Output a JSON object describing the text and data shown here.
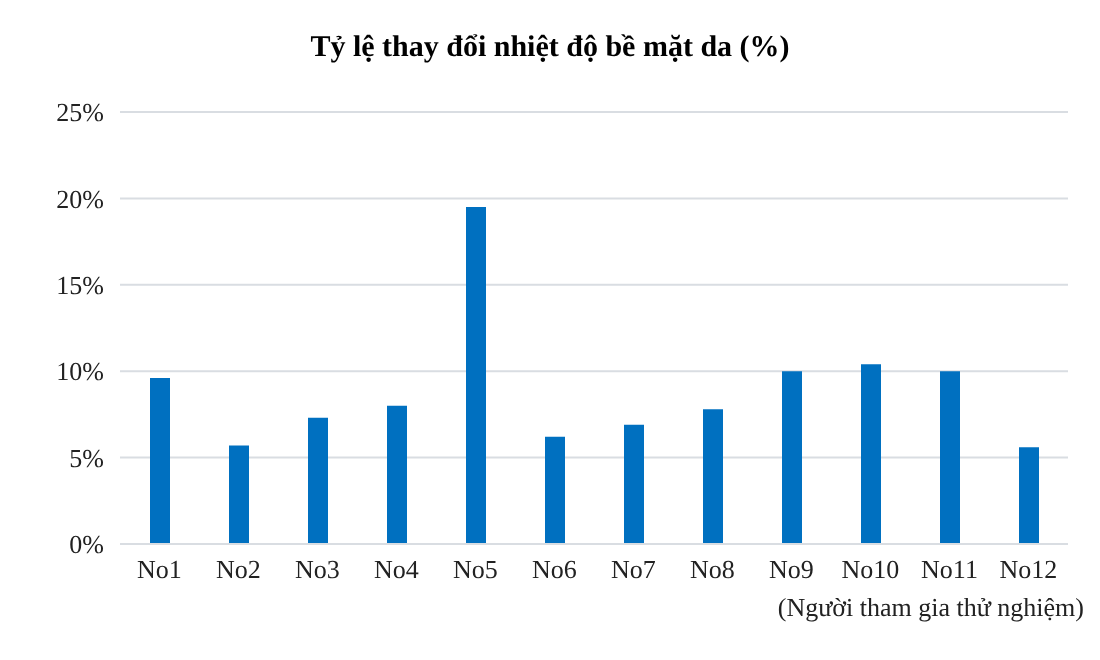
{
  "chart_data": {
    "type": "bar",
    "title": "Tỷ lệ thay đổi nhiệt độ bề mặt da (%)",
    "xlabel": "(Người tham gia thử nghiệm)",
    "categories": [
      "No1",
      "No2",
      "No3",
      "No4",
      "No5",
      "No6",
      "No7",
      "No8",
      "No9",
      "No10",
      "No11",
      "No12"
    ],
    "values": [
      9.6,
      5.7,
      7.3,
      8.0,
      19.5,
      6.2,
      6.9,
      7.8,
      10.0,
      10.4,
      10.0,
      5.6
    ],
    "color": "#0070c0",
    "ylim": [
      0,
      25
    ],
    "yticks": [
      {
        "value": 0,
        "label": "0%"
      },
      {
        "value": 5,
        "label": "5%"
      },
      {
        "value": 10,
        "label": "10%"
      },
      {
        "value": 15,
        "label": "15%"
      },
      {
        "value": 20,
        "label": "20%"
      },
      {
        "value": 25,
        "label": "25%"
      }
    ],
    "grid": "y"
  }
}
